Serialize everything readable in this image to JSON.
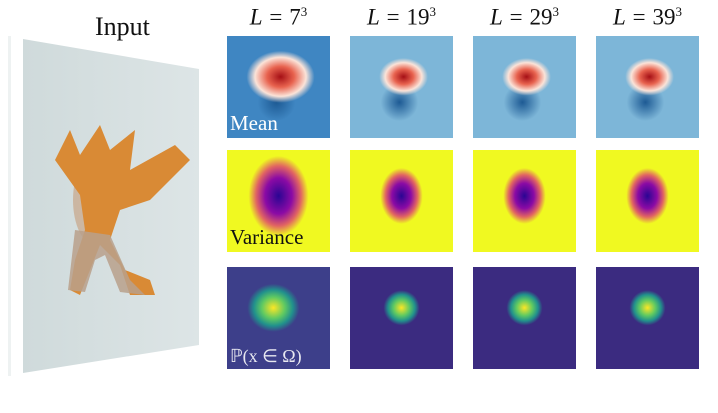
{
  "input_label": "Input",
  "columns": [
    {
      "prefix": "L = ",
      "base": "7",
      "exp": "3"
    },
    {
      "prefix": "L = ",
      "base": "19",
      "exp": "3"
    },
    {
      "prefix": "L = ",
      "base": "29",
      "exp": "3"
    },
    {
      "prefix": "L = ",
      "base": "39",
      "exp": "3"
    }
  ],
  "rows": [
    {
      "label": "Mean",
      "colormap": "blue-white-red",
      "colors": [
        "#3a7fbc",
        "#ffffff",
        "#b2182b"
      ]
    },
    {
      "label": "Variance",
      "colormap": "plasma",
      "colors": [
        "#f0f921",
        "#e16462",
        "#0d0887"
      ]
    },
    {
      "label": "ℙ(x ∈ Ω)",
      "colormap": "viridis",
      "colors": [
        "#3b2b80",
        "#21a08a",
        "#fde725"
      ]
    }
  ]
}
